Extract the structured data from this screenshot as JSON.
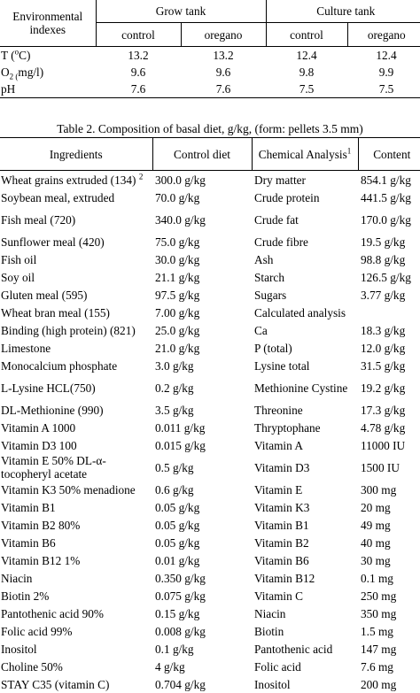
{
  "table1": {
    "header": {
      "env_label": "Environmental indexes",
      "grow_tank": "Grow tank",
      "culture_tank": "Culture tank",
      "subcols": [
        "control",
        "oregano",
        "control",
        "oregano"
      ]
    },
    "rows": [
      {
        "label_main": "T (",
        "label_sup": "o",
        "label_tail": "C)",
        "values": [
          "13.2",
          "13.2",
          "12.4",
          "12.4"
        ]
      },
      {
        "label_main": "O",
        "label_sub": "2 (",
        "label_tail": "mg/l)",
        "values": [
          "9.6",
          "9.6",
          "9.8",
          "9.9"
        ]
      },
      {
        "label_main": "pH",
        "values": [
          "7.6",
          "7.6",
          "7.5",
          "7.5"
        ]
      }
    ]
  },
  "table2": {
    "caption": "Table 2. Composition of basal diet, g/kg, (form: pellets 3.5 mm)",
    "header": {
      "ingredients": "Ingredients",
      "control_diet": "Control diet",
      "chemical_analysis": "Chemical Analysis",
      "chemical_analysis_sup": "1",
      "content": "Content"
    },
    "rows": [
      {
        "ingredient": "Wheat grains extruded (134)",
        "ingredient_sup": "2",
        "control": "300.0 g/kg",
        "chemical": "Dry matter",
        "content": "854.1 g/kg"
      },
      {
        "ingredient": "Soybean meal, extruded",
        "control": "70.0 g/kg",
        "chemical": "Crude protein",
        "content": "441.5 g/kg"
      },
      {
        "ingredient": "Fish meal (720)",
        "control": "340.0 g/kg",
        "chemical": "Crude fat",
        "content": "170.0 g/kg",
        "tall": true
      },
      {
        "ingredient": "Sunflower meal (420)",
        "control": "75.0 g/kg",
        "chemical": "Crude fibre",
        "content": "19.5 g/kg"
      },
      {
        "ingredient": "Fish oil",
        "control": "30.0 g/kg",
        "chemical": "Ash",
        "content": "98.8 g/kg"
      },
      {
        "ingredient": "Soy oil",
        "control": "21.1 g/kg",
        "chemical": "Starch",
        "content": "126.5 g/kg"
      },
      {
        "ingredient": "Gluten meal (595)",
        "control": "97.5 g/kg",
        "chemical": "Sugars",
        "content": "3.77 g/kg"
      },
      {
        "ingredient": "Wheat bran meal (155)",
        "control": "7.00 g/kg",
        "chemical": "Calculated analysis",
        "content": ""
      },
      {
        "ingredient": "Binding (high protein) (821)",
        "control": "25.0 g/kg",
        "chemical": "Ca",
        "content": "18.3 g/kg"
      },
      {
        "ingredient": "Limestone",
        "control": "21.0 g/kg",
        "chemical": "P (total)",
        "content": "12.0 g/kg"
      },
      {
        "ingredient": "Monocalcium phosphate",
        "control": "3.0 g/kg",
        "chemical": "Lysine total",
        "content": "31.5 g/kg"
      },
      {
        "ingredient": "L-Lysine HCL(750)",
        "control": "0.2 g/kg",
        "chemical": "Methionine Cystine",
        "content": "19.2 g/kg",
        "tall": true
      },
      {
        "ingredient": "DL-Methionine (990)",
        "control": "3.5 g/kg",
        "chemical": "Threonine",
        "content": "17.3 g/kg"
      },
      {
        "ingredient": "Vitamin A 1000",
        "control": "0.011 g/kg",
        "chemical": "Thryptophane",
        "content": "4.78 g/kg"
      },
      {
        "ingredient": "Vitamin D3 100",
        "control": "0.015 g/kg",
        "chemical": "Vitamin A",
        "content": "11000 IU"
      },
      {
        "ingredient": "Vitamin E 50% DL-α-tocopheryl acetate",
        "control": "0.5 g/kg",
        "chemical": "Vitamin D3",
        "content": "1500 IU",
        "tall": true
      },
      {
        "ingredient": "Vitamin K3 50% menadione",
        "control": "0.6 g/kg",
        "chemical": "Vitamin E",
        "content": "300 mg"
      },
      {
        "ingredient": "Vitamin B1",
        "control": "0.05 g/kg",
        "chemical": "Vitamin K3",
        "content": "20 mg"
      },
      {
        "ingredient": "Vitamin B2 80%",
        "control": "0.05 g/kg",
        "chemical": "Vitamin B1",
        "content": "49 mg"
      },
      {
        "ingredient": "Vitamin B6",
        "control": "0.05 g/kg",
        "chemical": "Vitamin B2",
        "content": "40 mg"
      },
      {
        "ingredient": "Vitamin B12 1%",
        "control": "0.01 g/kg",
        "chemical": "Vitamin B6",
        "content": "30 mg"
      },
      {
        "ingredient": "Niacin",
        "control": "0.350 g/kg",
        "chemical": "Vitamin B12",
        "content": "0.1 mg"
      },
      {
        "ingredient": "Biotin 2%",
        "control": "0.075 g/kg",
        "chemical": "Vitamin C",
        "content": "250 mg"
      },
      {
        "ingredient": "Pantothenic acid 90%",
        "control": "0.15 g/kg",
        "chemical": "Niacin",
        "content": "350 mg"
      },
      {
        "ingredient": "Folic acid 99%",
        "control": "0.008 g/kg",
        "chemical": "Biotin",
        "content": "1.5 mg"
      },
      {
        "ingredient": "Inositol",
        "control": "0.1 g/kg",
        "chemical": "Pantothenic acid",
        "content": "147 mg"
      },
      {
        "ingredient": "Choline 50%",
        "control": "4 g/kg",
        "chemical": "Folic acid",
        "content": "7.6 mg"
      },
      {
        "ingredient": "STAY C35 (vitamin C)",
        "control": "0.704 g/kg",
        "chemical": "Inositol",
        "content": "200 mg"
      }
    ]
  }
}
